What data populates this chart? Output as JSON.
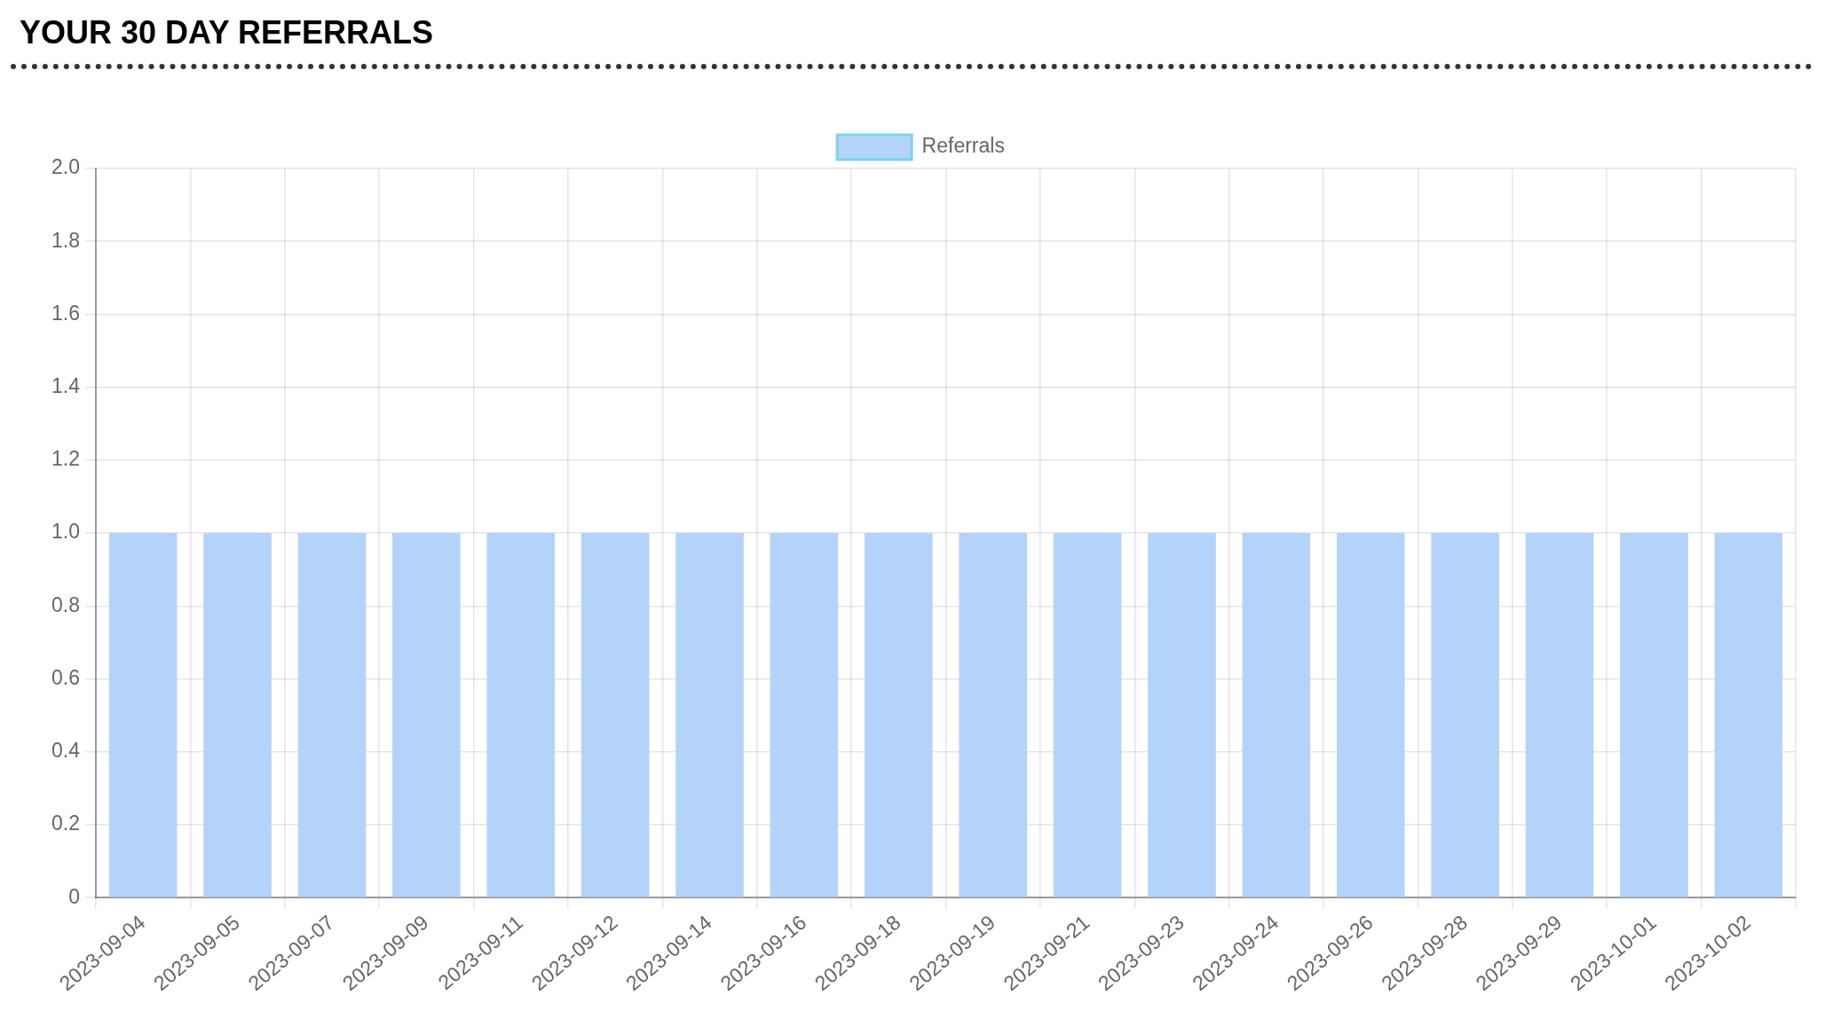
{
  "chart_data": {
    "type": "bar",
    "title": "YOUR 30 DAY REFERRALS",
    "categories": [
      "2023-09-04",
      "2023-09-05",
      "2023-09-07",
      "2023-09-09",
      "2023-09-11",
      "2023-09-12",
      "2023-09-14",
      "2023-09-16",
      "2023-09-18",
      "2023-09-19",
      "2023-09-21",
      "2023-09-23",
      "2023-09-24",
      "2023-09-26",
      "2023-09-28",
      "2023-09-29",
      "2023-10-01",
      "2023-10-02"
    ],
    "series": [
      {
        "name": "Referrals",
        "color": "#b3d3fa",
        "values": [
          1,
          1,
          1,
          1,
          1,
          1,
          1,
          1,
          1,
          1,
          1,
          1,
          1,
          1,
          1,
          1,
          1,
          1
        ]
      }
    ],
    "ylim": [
      0,
      2
    ],
    "yticks": [
      0,
      0.2,
      0.4,
      0.6,
      0.8,
      {
        "value": 1,
        "label": "1.0"
      },
      1.2,
      1.4,
      1.6,
      1.8,
      {
        "value": 2,
        "label": "2.0"
      }
    ],
    "grid": true,
    "legend": "top"
  }
}
